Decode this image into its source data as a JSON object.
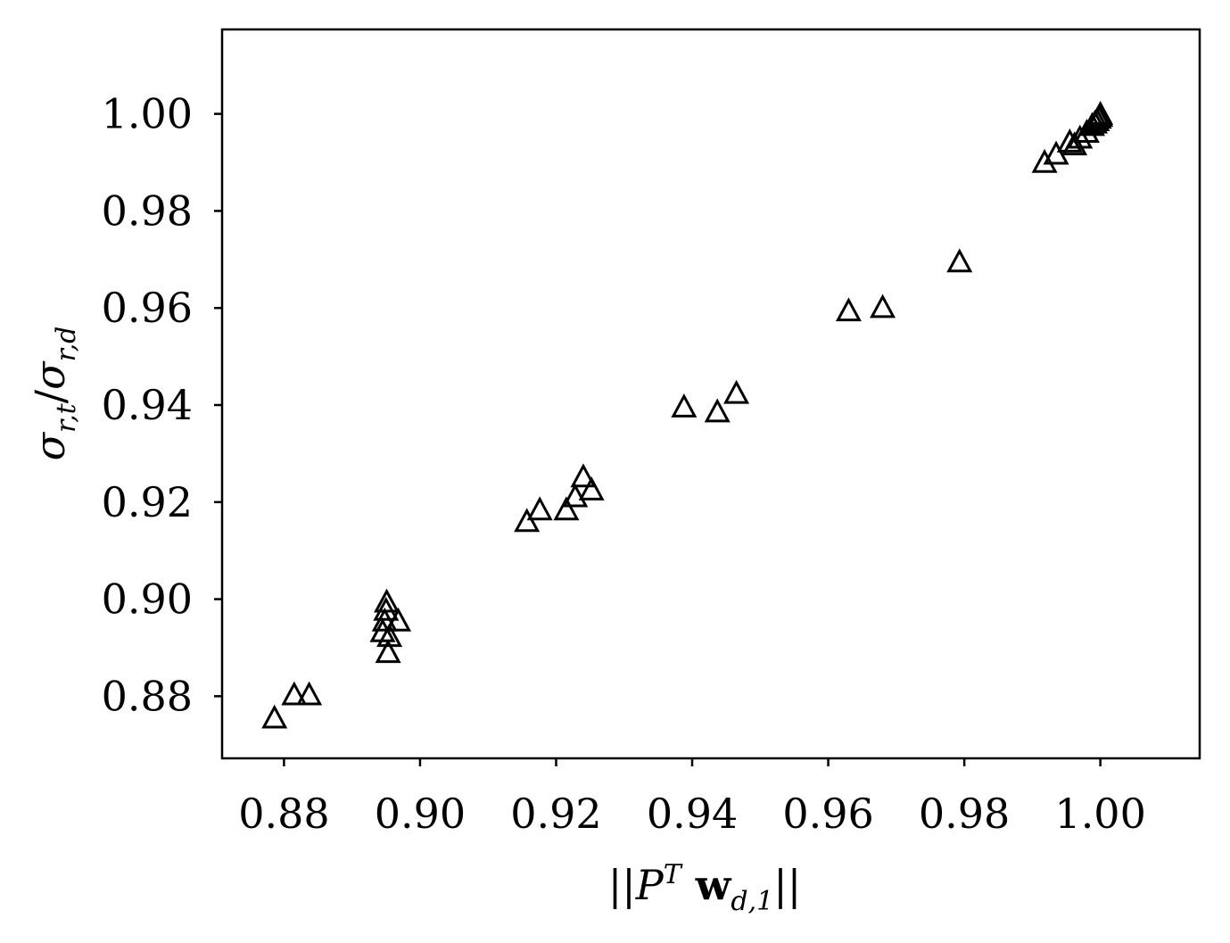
{
  "chart_data": {
    "type": "scatter",
    "marker": "triangle-up-open",
    "marker_color": "#000000",
    "xlabel": "||P^T w_{d,1}||",
    "ylabel": "σ_{r,t}/σ_{r,d}",
    "xlim": [
      0.8709,
      1.0146
    ],
    "ylim": [
      0.8672,
      1.0174
    ],
    "xticks": [
      "0.88",
      "0.90",
      "0.92",
      "0.94",
      "0.96",
      "0.98",
      "1.00"
    ],
    "yticks": [
      "0.88",
      "0.90",
      "0.92",
      "0.94",
      "0.96",
      "0.98",
      "1.00"
    ],
    "grid": false,
    "legend": "none",
    "points": [
      {
        "x": 0.8786,
        "y": 0.8755
      },
      {
        "x": 0.8815,
        "y": 0.8803
      },
      {
        "x": 0.8837,
        "y": 0.8803
      },
      {
        "x": 0.8945,
        "y": 0.8933
      },
      {
        "x": 0.8948,
        "y": 0.8955
      },
      {
        "x": 0.895,
        "y": 0.8977
      },
      {
        "x": 0.8951,
        "y": 0.8994
      },
      {
        "x": 0.8953,
        "y": 0.889
      },
      {
        "x": 0.8955,
        "y": 0.8923
      },
      {
        "x": 0.8968,
        "y": 0.8955
      },
      {
        "x": 0.9157,
        "y": 0.916
      },
      {
        "x": 0.9176,
        "y": 0.9184
      },
      {
        "x": 0.9215,
        "y": 0.9184
      },
      {
        "x": 0.9228,
        "y": 0.9211
      },
      {
        "x": 0.924,
        "y": 0.9252
      },
      {
        "x": 0.9252,
        "y": 0.9225
      },
      {
        "x": 0.9388,
        "y": 0.9396
      },
      {
        "x": 0.9437,
        "y": 0.9386
      },
      {
        "x": 0.9465,
        "y": 0.9424
      },
      {
        "x": 0.963,
        "y": 0.9594
      },
      {
        "x": 0.968,
        "y": 0.9601
      },
      {
        "x": 0.9793,
        "y": 0.9695
      },
      {
        "x": 0.9918,
        "y": 0.99
      },
      {
        "x": 0.9935,
        "y": 0.9917
      },
      {
        "x": 0.9955,
        "y": 0.9942
      },
      {
        "x": 0.9962,
        "y": 0.9936
      },
      {
        "x": 0.997,
        "y": 0.995
      },
      {
        "x": 0.998,
        "y": 0.9962
      },
      {
        "x": 0.9988,
        "y": 0.9976
      },
      {
        "x": 0.9992,
        "y": 0.9981
      },
      {
        "x": 0.9995,
        "y": 0.9986
      },
      {
        "x": 0.9998,
        "y": 0.9991
      },
      {
        "x": 1.0,
        "y": 0.9995
      },
      {
        "x": 1.0,
        "y": 0.9999
      }
    ]
  }
}
